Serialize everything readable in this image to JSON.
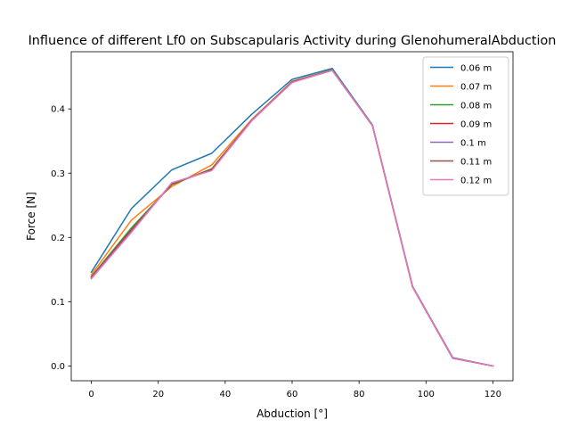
{
  "chart_data": {
    "type": "line",
    "title": "Influence of different Lf0 on Subscapularis Activity during GlenohumeralAbduction",
    "xlabel": "Abduction [°]",
    "ylabel": "Force [N]",
    "xlim": [
      -6,
      126
    ],
    "ylim": [
      -0.023,
      0.489
    ],
    "xticks": [
      0,
      20,
      40,
      60,
      80,
      100,
      120
    ],
    "yticks": [
      0.0,
      0.1,
      0.2,
      0.3,
      0.4
    ],
    "xtick_labels": [
      "0",
      "20",
      "40",
      "60",
      "80",
      "100",
      "120"
    ],
    "ytick_labels": [
      "0.0",
      "0.1",
      "0.2",
      "0.3",
      "0.4"
    ],
    "grid": false,
    "legend_position": "top-right",
    "x": [
      0,
      12,
      24,
      36,
      48,
      60,
      72,
      84,
      96,
      108,
      120
    ],
    "series": [
      {
        "name": "0.06 m",
        "color": "#1f77b4",
        "values": [
          0.146,
          0.245,
          0.305,
          0.331,
          0.392,
          0.446,
          0.463,
          0.375,
          0.124,
          0.013,
          0.0
        ]
      },
      {
        "name": "0.07 m",
        "color": "#ff7f0e",
        "values": [
          0.142,
          0.227,
          0.279,
          0.313,
          0.384,
          0.443,
          0.461,
          0.374,
          0.123,
          0.012,
          0.0
        ]
      },
      {
        "name": "0.08 m",
        "color": "#2ca02c",
        "values": [
          0.139,
          0.215,
          0.282,
          0.307,
          0.383,
          0.442,
          0.461,
          0.374,
          0.123,
          0.012,
          0.0
        ]
      },
      {
        "name": "0.09 m",
        "color": "#d62728",
        "values": [
          0.138,
          0.212,
          0.283,
          0.306,
          0.383,
          0.442,
          0.46,
          0.374,
          0.123,
          0.012,
          0.0
        ]
      },
      {
        "name": "0.1 m",
        "color": "#9467bd",
        "values": [
          0.137,
          0.21,
          0.284,
          0.305,
          0.383,
          0.442,
          0.46,
          0.374,
          0.123,
          0.012,
          0.0
        ]
      },
      {
        "name": "0.11 m",
        "color": "#8c564b",
        "values": [
          0.136,
          0.209,
          0.284,
          0.305,
          0.382,
          0.442,
          0.46,
          0.374,
          0.123,
          0.012,
          0.0
        ]
      },
      {
        "name": "0.12 m",
        "color": "#e377c2",
        "values": [
          0.136,
          0.208,
          0.285,
          0.304,
          0.382,
          0.441,
          0.46,
          0.374,
          0.123,
          0.012,
          0.0
        ]
      }
    ]
  }
}
